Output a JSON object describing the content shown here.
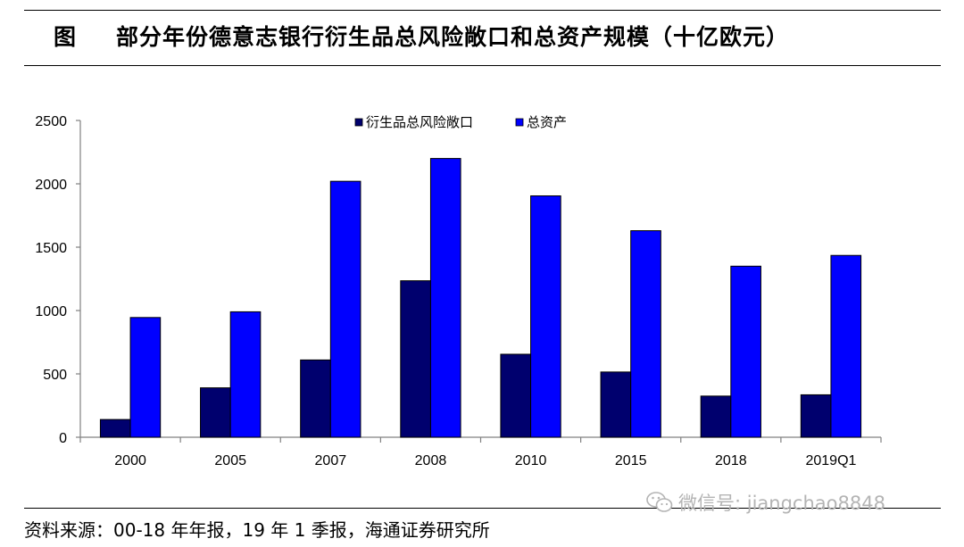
{
  "header": {
    "figure_label": "图",
    "title": "部分年份德意志银行衍生品总风险敞口和总资产规模（十亿欧元）"
  },
  "footer": {
    "source": "资料来源：00-18 年年报，19 年 1 季报，海通证券研究所"
  },
  "watermark": {
    "text": "微信号: jiangchao8848",
    "icon": "wechat-icon"
  },
  "colors": {
    "series1": "#00006e",
    "series2": "#0000ff",
    "axis": "#808080"
  },
  "chart_data": {
    "type": "bar",
    "title": "",
    "xlabel": "",
    "ylabel": "",
    "categories": [
      "2000",
      "2005",
      "2007",
      "2008",
      "2010",
      "2015",
      "2018",
      "2019Q1"
    ],
    "series": [
      {
        "name": "衍生品总风险敞口",
        "values": [
          140,
          390,
          610,
          1235,
          655,
          515,
          325,
          335
        ]
      },
      {
        "name": "总资产",
        "values": [
          945,
          990,
          2020,
          2200,
          1905,
          1630,
          1350,
          1435
        ]
      }
    ],
    "ylim": [
      0,
      2500
    ],
    "yticks": [
      0,
      500,
      1000,
      1500,
      2000,
      2500
    ],
    "grid": false,
    "legend_position": "top-center"
  }
}
